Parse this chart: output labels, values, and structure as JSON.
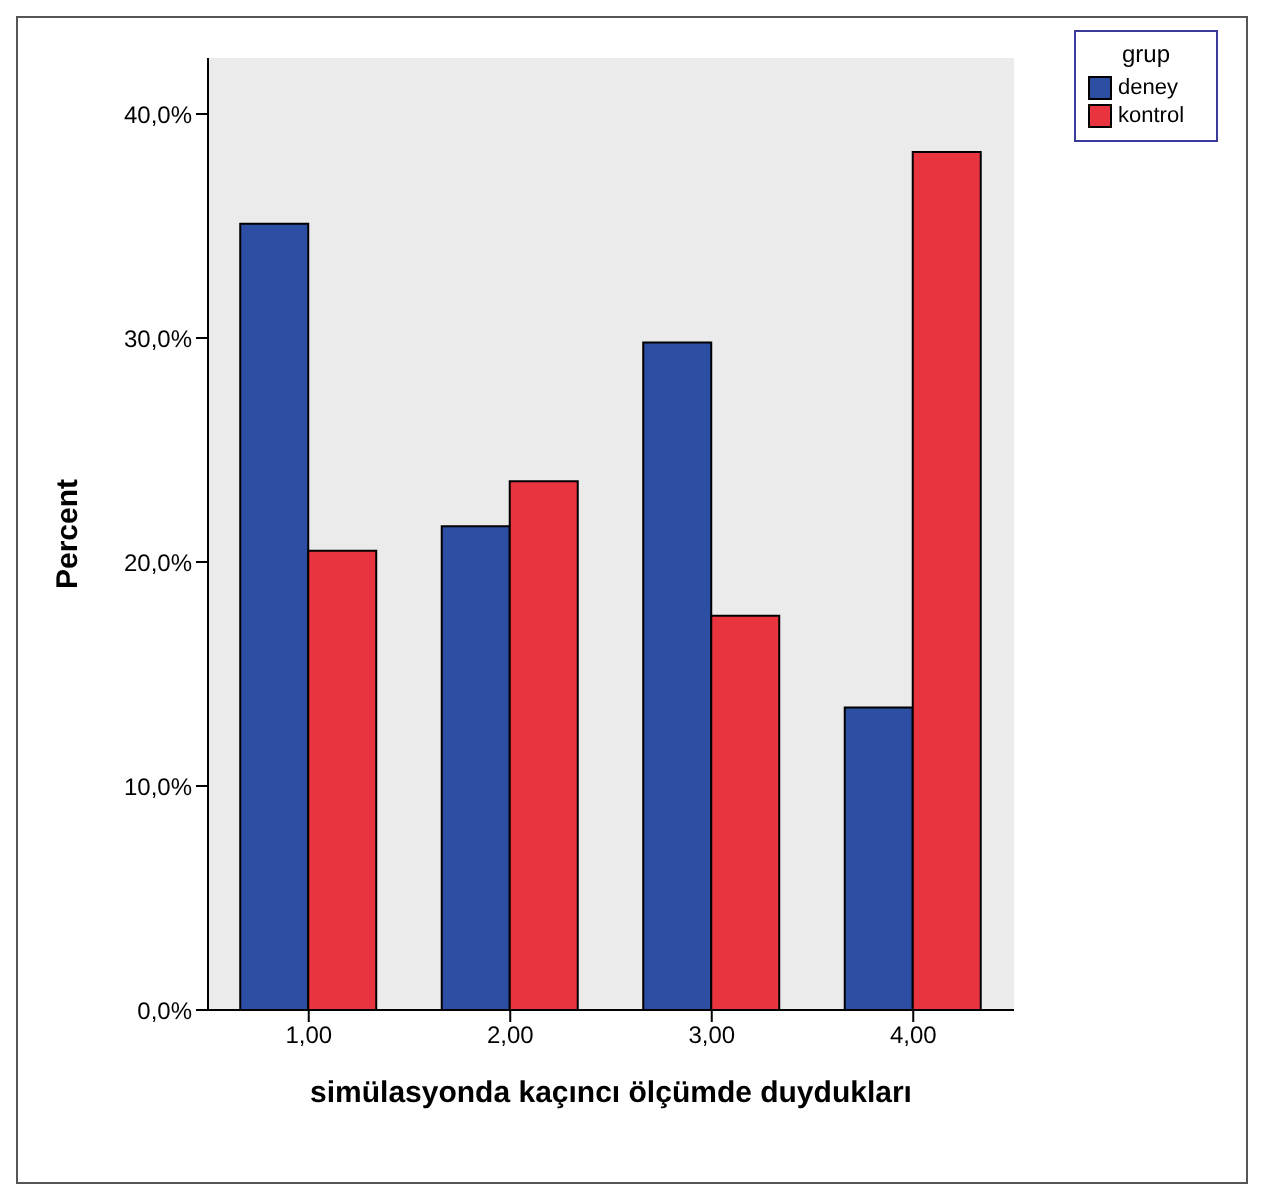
{
  "chart_data": {
    "type": "bar",
    "xlabel": "simülasyonda kaçıncı ölçümde duydukları",
    "ylabel": "Percent",
    "legend_title": "grup",
    "categories": [
      "1,00",
      "2,00",
      "3,00",
      "4,00"
    ],
    "series": [
      {
        "name": "deney",
        "color": "#2c4ea3",
        "values": [
          35.1,
          21.6,
          29.8,
          13.5
        ]
      },
      {
        "name": "kontrol",
        "color": "#e8343f",
        "values": [
          20.5,
          23.6,
          17.6,
          38.3
        ]
      }
    ],
    "ylim": [
      0,
      42.5
    ],
    "yticks": [
      {
        "value": 0,
        "label": "0,0%"
      },
      {
        "value": 10,
        "label": "10,0%"
      },
      {
        "value": 20,
        "label": "20,0%"
      },
      {
        "value": 30,
        "label": "30,0%"
      },
      {
        "value": 40,
        "label": "40,0%"
      }
    ],
    "grid": false,
    "legend": "top right"
  }
}
